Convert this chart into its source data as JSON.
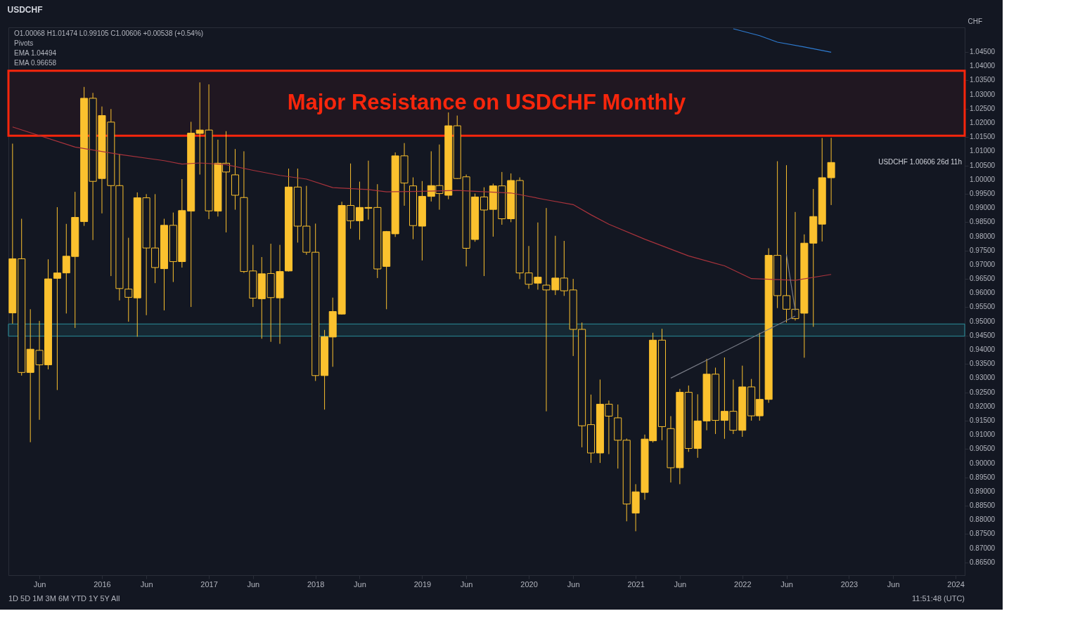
{
  "chart_data": {
    "type": "candlestick",
    "title": "USDCHF",
    "grid": false,
    "xlim": [
      "2015-02-27",
      "2024-01-20"
    ],
    "ylim": [
      0.8605,
      1.0537
    ],
    "xticks": [
      {
        "value": "2015-06",
        "label": "Jun"
      },
      {
        "value": "2016-01",
        "label": "2016"
      },
      {
        "value": "2016-06",
        "label": "Jun"
      },
      {
        "value": "2017-01",
        "label": "2017"
      },
      {
        "value": "2017-06",
        "label": "Jun"
      },
      {
        "value": "2018-01",
        "label": "2018"
      },
      {
        "value": "2018-06",
        "label": "Jun"
      },
      {
        "value": "2019-01",
        "label": "2019"
      },
      {
        "value": "2019-06",
        "label": "Jun"
      },
      {
        "value": "2020-01",
        "label": "2020"
      },
      {
        "value": "2020-06",
        "label": "Jun"
      },
      {
        "value": "2021-01",
        "label": "2021"
      },
      {
        "value": "2021-06",
        "label": "Jun"
      },
      {
        "value": "2022-01",
        "label": "2022"
      },
      {
        "value": "2022-06",
        "label": "Jun"
      },
      {
        "value": "2023-01",
        "label": "2023"
      },
      {
        "value": "2023-06",
        "label": "Jun"
      },
      {
        "value": "2024-01",
        "label": "2024"
      }
    ],
    "yticks": [
      {
        "value": 0.865,
        "label": "0.86500"
      },
      {
        "value": 0.87,
        "label": "0.87000"
      },
      {
        "value": 0.875,
        "label": "0.87500"
      },
      {
        "value": 0.88,
        "label": "0.88000"
      },
      {
        "value": 0.885,
        "label": "0.88500"
      },
      {
        "value": 0.89,
        "label": "0.89000"
      },
      {
        "value": 0.895,
        "label": "0.89500"
      },
      {
        "value": 0.9,
        "label": "0.90000"
      },
      {
        "value": 0.905,
        "label": "0.90500"
      },
      {
        "value": 0.91,
        "label": "0.91000"
      },
      {
        "value": 0.915,
        "label": "0.91500"
      },
      {
        "value": 0.92,
        "label": "0.92000"
      },
      {
        "value": 0.925,
        "label": "0.92500"
      },
      {
        "value": 0.93,
        "label": "0.93000"
      },
      {
        "value": 0.935,
        "label": "0.93500"
      },
      {
        "value": 0.94,
        "label": "0.94000"
      },
      {
        "value": 0.945,
        "label": "0.94500"
      },
      {
        "value": 0.95,
        "label": "0.95000"
      },
      {
        "value": 0.955,
        "label": "0.95500"
      },
      {
        "value": 0.96,
        "label": "0.96000"
      },
      {
        "value": 0.965,
        "label": "0.96500"
      },
      {
        "value": 0.97,
        "label": "0.97000"
      },
      {
        "value": 0.975,
        "label": "0.97500"
      },
      {
        "value": 0.98,
        "label": "0.98000"
      },
      {
        "value": 0.985,
        "label": "0.98500"
      },
      {
        "value": 0.99,
        "label": "0.99000"
      },
      {
        "value": 0.995,
        "label": "0.99500"
      },
      {
        "value": 1.0,
        "label": "1.00000"
      },
      {
        "value": 1.005,
        "label": "1.00500"
      },
      {
        "value": 1.01,
        "label": "1.01000"
      },
      {
        "value": 1.015,
        "label": "1.01500"
      },
      {
        "value": 1.02,
        "label": "1.02000"
      },
      {
        "value": 1.025,
        "label": "1.02500"
      },
      {
        "value": 1.03,
        "label": "1.03000"
      },
      {
        "value": 1.035,
        "label": "1.03500"
      },
      {
        "value": 1.04,
        "label": "1.04000"
      },
      {
        "value": 1.045,
        "label": "1.04500"
      }
    ],
    "ylabel": "CHF",
    "bands": [
      {
        "axis": "y",
        "from": 1.0155,
        "to": 1.0384,
        "label": "Major Resistance on USDCHF Monthly",
        "color": "#f7260c"
      },
      {
        "axis": "y",
        "from": 0.9448,
        "to": 0.9491,
        "label": null,
        "color": "#2a8f9c"
      }
    ],
    "annotations": [
      "O1.00068 H1.01474 L0.99105 C1.00606 +0.00538 (+0.54%)",
      "Pivots",
      "EMA 1.04494",
      "EMA 0.96658",
      "USDCHF 1.00606 26d 11h",
      "1D 5D 1M 3M 6M YTD 1Y 5Y All",
      "11:51:48 (UTC)"
    ],
    "series": [
      {
        "type": "candlestick",
        "color": "#fbc12e",
        "x": [
          "2015-03",
          "2015-04",
          "2015-05",
          "2015-06",
          "2015-07",
          "2015-08",
          "2015-09",
          "2015-10",
          "2015-11",
          "2015-12",
          "2016-01",
          "2016-02",
          "2016-03",
          "2016-04",
          "2016-05",
          "2016-06",
          "2016-07",
          "2016-08",
          "2016-09",
          "2016-10",
          "2016-11",
          "2016-12",
          "2017-01",
          "2017-02",
          "2017-03",
          "2017-04",
          "2017-05",
          "2017-06",
          "2017-07",
          "2017-08",
          "2017-09",
          "2017-10",
          "2017-11",
          "2017-12",
          "2018-01",
          "2018-02",
          "2018-03",
          "2018-04",
          "2018-05",
          "2018-06",
          "2018-07",
          "2018-08",
          "2018-09",
          "2018-10",
          "2018-11",
          "2018-12",
          "2019-01",
          "2019-02",
          "2019-03",
          "2019-04",
          "2019-05",
          "2019-06",
          "2019-07",
          "2019-08",
          "2019-09",
          "2019-10",
          "2019-11",
          "2019-12",
          "2020-01",
          "2020-02",
          "2020-03",
          "2020-04",
          "2020-05",
          "2020-06",
          "2020-07",
          "2020-08",
          "2020-09",
          "2020-10",
          "2020-11",
          "2020-12",
          "2021-01",
          "2021-02",
          "2021-03",
          "2021-04",
          "2021-05",
          "2021-06",
          "2021-07",
          "2021-08",
          "2021-09",
          "2021-10",
          "2021-11",
          "2021-12",
          "2022-01",
          "2022-02",
          "2022-03",
          "2022-04",
          "2022-05",
          "2022-06",
          "2022-07",
          "2022-08",
          "2022-09",
          "2022-10",
          "2022-11"
        ],
        "ohlc": [
          [
            0.953,
            1.0127,
            0.9492,
            0.9721
          ],
          [
            0.9721,
            0.9862,
            0.9309,
            0.932
          ],
          [
            0.932,
            0.9543,
            0.9074,
            0.9402
          ],
          [
            0.9398,
            0.9502,
            0.9153,
            0.9347
          ],
          [
            0.9347,
            0.9719,
            0.9331,
            0.965
          ],
          [
            0.9652,
            0.9903,
            0.9258,
            0.9671
          ],
          [
            0.9671,
            0.9844,
            0.9528,
            0.973
          ],
          [
            0.9729,
            0.9957,
            0.9477,
            0.9867
          ],
          [
            0.9852,
            1.0327,
            0.9837,
            1.0287
          ],
          [
            1.0287,
            1.0306,
            0.9787,
            0.9994
          ],
          [
            1.0004,
            1.0258,
            0.9881,
            1.0226
          ],
          [
            1.0203,
            1.0249,
            0.966,
            0.9979
          ],
          [
            0.9979,
            1.0091,
            0.9574,
            0.9616
          ],
          [
            0.9614,
            0.9795,
            0.9499,
            0.9585
          ],
          [
            0.9583,
            0.9955,
            0.9446,
            0.9936
          ],
          [
            0.9936,
            0.9949,
            0.9522,
            0.9759
          ],
          [
            0.9759,
            0.9949,
            0.9635,
            0.969
          ],
          [
            0.9686,
            0.9862,
            0.9539,
            0.9839
          ],
          [
            0.9839,
            0.9884,
            0.9639,
            0.9711
          ],
          [
            0.9711,
            1.0002,
            0.969,
            0.9891
          ],
          [
            0.9889,
            1.0204,
            0.9551,
            1.0164
          ],
          [
            1.0163,
            1.0343,
            1.0018,
            1.0175
          ],
          [
            1.0175,
            1.0336,
            0.9861,
            0.989
          ],
          [
            0.9889,
            1.0141,
            0.987,
            1.0058
          ],
          [
            1.0058,
            1.0171,
            0.9814,
            1.0027
          ],
          [
            1.0017,
            1.0108,
            0.9894,
            0.9945
          ],
          [
            0.9937,
            1.01,
            0.9671,
            0.9676
          ],
          [
            0.9678,
            0.977,
            0.9551,
            0.9582
          ],
          [
            0.958,
            0.9727,
            0.9439,
            0.9668
          ],
          [
            0.9669,
            0.9774,
            0.9428,
            0.9584
          ],
          [
            0.9583,
            0.977,
            0.9421,
            0.9676
          ],
          [
            0.9678,
            1.0039,
            0.9676,
            0.9974
          ],
          [
            0.9974,
            1.0039,
            0.9778,
            0.9836
          ],
          [
            0.9836,
            0.9978,
            0.9735,
            0.9744
          ],
          [
            0.9744,
            0.9845,
            0.929,
            0.9309
          ],
          [
            0.9309,
            0.947,
            0.9189,
            0.9446
          ],
          [
            0.9445,
            0.9584,
            0.934,
            0.9535
          ],
          [
            0.9526,
            0.9922,
            0.9524,
            0.9909
          ],
          [
            0.9909,
            1.0057,
            0.9827,
            0.9855
          ],
          [
            0.9855,
            0.9993,
            0.9788,
            0.9902
          ],
          [
            0.9899,
            1.0067,
            0.9859,
            0.9902
          ],
          [
            0.9902,
            0.9984,
            0.9653,
            0.9685
          ],
          [
            0.9694,
            0.9819,
            0.9543,
            0.9817
          ],
          [
            0.9809,
            1.0096,
            0.9798,
            1.0084
          ],
          [
            1.0084,
            1.0129,
            0.9908,
            0.9988
          ],
          [
            0.9978,
            1.0008,
            0.979,
            0.9838
          ],
          [
            0.9836,
            0.9995,
            0.9715,
            0.9941
          ],
          [
            0.9941,
            1.01,
            0.9923,
            0.9979
          ],
          [
            0.9979,
            1.0124,
            0.9894,
            0.9951
          ],
          [
            0.9945,
            1.0237,
            0.9931,
            1.019
          ],
          [
            1.019,
            1.0226,
            1.0002,
            1.0004
          ],
          [
            1.001,
            1.0018,
            0.9694,
            0.9758
          ],
          [
            0.9789,
            0.9951,
            0.9781,
            0.9939
          ],
          [
            0.9939,
            0.9973,
            0.966,
            0.9893
          ],
          [
            0.9895,
            0.9986,
            0.9799,
            0.9978
          ],
          [
            0.9978,
            1.0027,
            0.9841,
            0.9862
          ],
          [
            0.9862,
            1.0022,
            0.985,
            0.9997
          ],
          [
            0.9997,
            1.0008,
            0.9649,
            0.9671
          ],
          [
            0.9671,
            0.9766,
            0.9615,
            0.9631
          ],
          [
            0.9635,
            0.9849,
            0.9612,
            0.9656
          ],
          [
            0.9628,
            0.99,
            0.9183,
            0.9611
          ],
          [
            0.9611,
            0.9802,
            0.9593,
            0.9653
          ],
          [
            0.9653,
            0.9784,
            0.959,
            0.9608
          ],
          [
            0.9611,
            0.965,
            0.9378,
            0.9472
          ],
          [
            0.9472,
            0.9496,
            0.9056,
            0.9132
          ],
          [
            0.9136,
            0.9242,
            0.9001,
            0.9036
          ],
          [
            0.9036,
            0.9295,
            0.9001,
            0.9208
          ],
          [
            0.9208,
            0.9221,
            0.9032,
            0.9166
          ],
          [
            0.916,
            0.9207,
            0.8981,
            0.9081
          ],
          [
            0.9081,
            0.9087,
            0.8795,
            0.8856
          ],
          [
            0.8824,
            0.8926,
            0.876,
            0.8899
          ],
          [
            0.8897,
            0.9101,
            0.8871,
            0.9085
          ],
          [
            0.9079,
            0.946,
            0.9073,
            0.9434
          ],
          [
            0.9434,
            0.9474,
            0.9081,
            0.9129
          ],
          [
            0.9122,
            0.9166,
            0.8932,
            0.8984
          ],
          [
            0.8984,
            0.9262,
            0.8926,
            0.925
          ],
          [
            0.925,
            0.9274,
            0.904,
            0.9052
          ],
          [
            0.9052,
            0.9243,
            0.9019,
            0.9149
          ],
          [
            0.9149,
            0.9368,
            0.9116,
            0.9314
          ],
          [
            0.9314,
            0.9337,
            0.9103,
            0.9151
          ],
          [
            0.9151,
            0.9373,
            0.9086,
            0.9183
          ],
          [
            0.9183,
            0.9295,
            0.9103,
            0.9116
          ],
          [
            0.9116,
            0.9344,
            0.9093,
            0.9269
          ],
          [
            0.9269,
            0.9297,
            0.915,
            0.9167
          ],
          [
            0.9167,
            0.946,
            0.915,
            0.9225
          ],
          [
            0.9225,
            0.9758,
            0.9213,
            0.9733
          ],
          [
            0.9733,
            1.0065,
            0.9547,
            0.9591
          ],
          [
            0.9591,
            1.0051,
            0.9496,
            0.9543
          ],
          [
            0.9543,
            0.9886,
            0.9503,
            0.951
          ],
          [
            0.9529,
            0.9807,
            0.9372,
            0.9776
          ],
          [
            0.9776,
            0.9967,
            0.9481,
            0.987
          ],
          [
            0.9843,
            1.0147,
            0.9782,
            1.0007
          ],
          [
            1.00068,
            1.01474,
            0.99105,
            1.00606
          ]
        ]
      },
      {
        "type": "line",
        "color": "#a8333c",
        "x": [
          "2015-03",
          "2015-10",
          "2016-03",
          "2016-08",
          "2016-10",
          "2016-12",
          "2017-03",
          "2017-06",
          "2017-09",
          "2017-12",
          "2018-03",
          "2018-07",
          "2018-09",
          "2019-01",
          "2019-05",
          "2019-11",
          "2020-03",
          "2020-06",
          "2020-08",
          "2020-10",
          "2021-02",
          "2021-07",
          "2021-11",
          "2022-02",
          "2022-07",
          "2022-11"
        ],
        "values": [
          1.0186,
          1.0115,
          1.0089,
          1.0067,
          1.0055,
          1.0059,
          1.0053,
          1.0033,
          1.0015,
          1.0002,
          0.9972,
          0.9965,
          0.9957,
          0.9959,
          0.9962,
          0.9953,
          0.9929,
          0.9912,
          0.9876,
          0.9843,
          0.979,
          0.9731,
          0.9696,
          0.9651,
          0.9645,
          0.96658
        ]
      },
      {
        "type": "line",
        "color": "#2e7bd0",
        "x": [
          "2021-12",
          "2022-03",
          "2022-05",
          "2022-08",
          "2022-11"
        ],
        "values": [
          1.0532,
          1.0508,
          1.0485,
          1.0468,
          1.04494
        ]
      },
      {
        "type": "line",
        "color": "#787b86",
        "x": [
          "2021-05",
          "2022-07"
        ],
        "values": [
          0.93,
          0.9519
        ]
      },
      {
        "type": "line",
        "color": "#787b86",
        "x": [
          "2022-06",
          "2022-07"
        ],
        "values": [
          0.9736,
          0.9538
        ]
      }
    ]
  }
}
